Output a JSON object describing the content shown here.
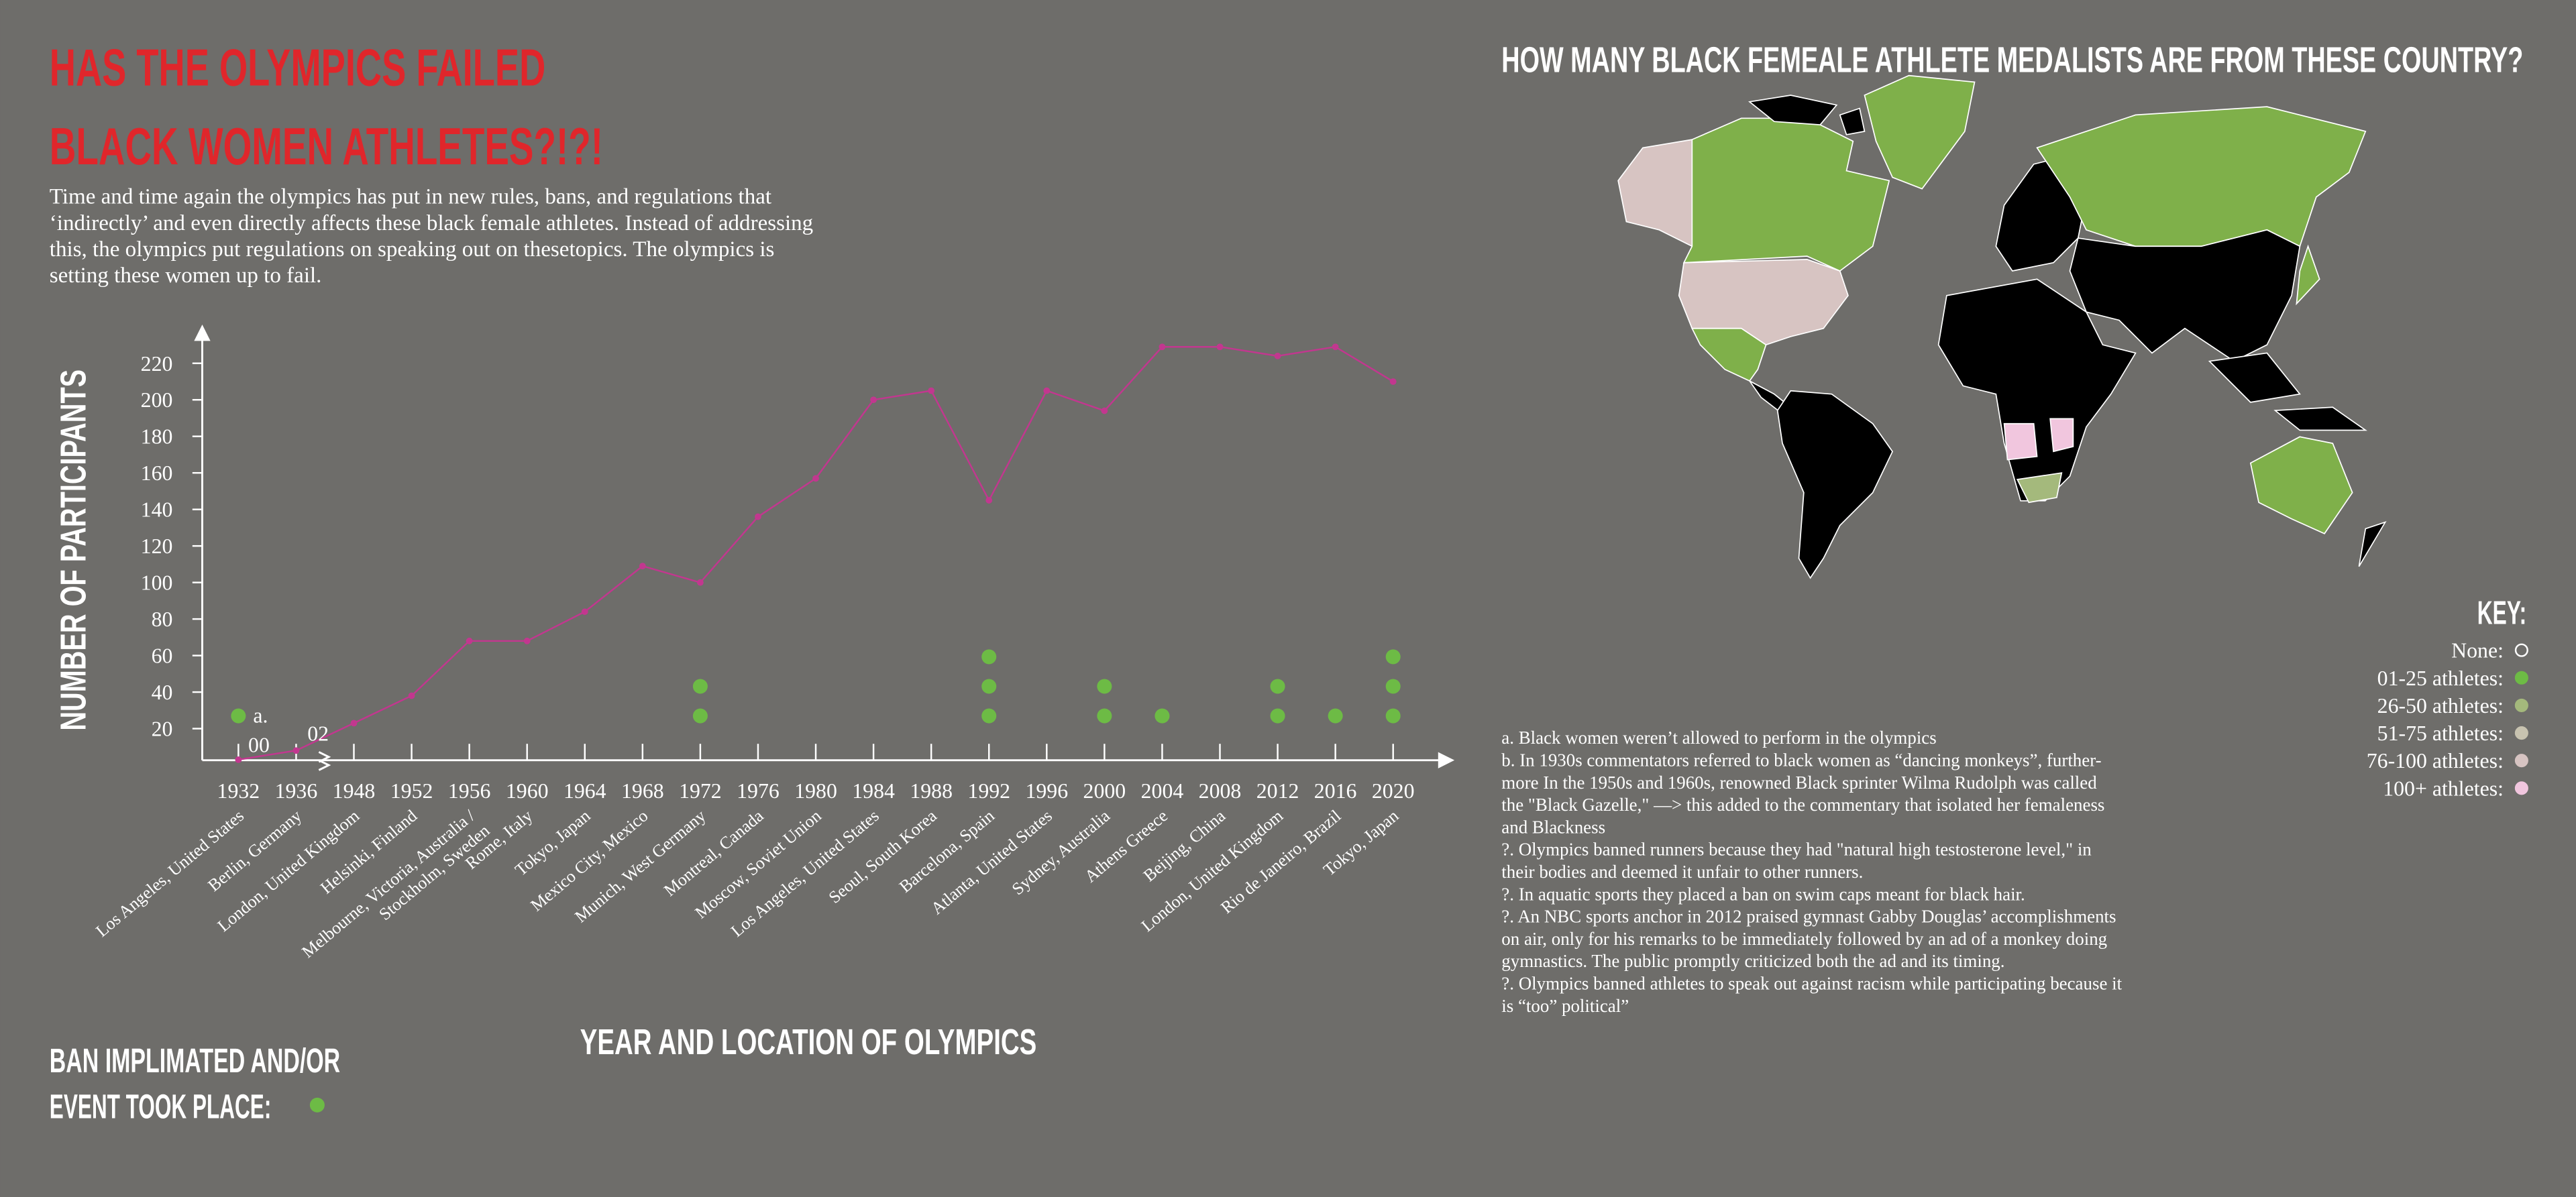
{
  "title_lines": [
    "HAS THE OLYMPICS FAILED",
    "BLACK WOMEN ATHLETES?!?!"
  ],
  "description_lines": [
    "Time and time again the olympics has put in new rules, bans, and regulations that",
    "‘indirectly’ and even directly affects these black female athletes. Instead of addressing",
    "this, the olympics put regulations on speaking out on thesetopics. The olympics is",
    "setting these women up to fail."
  ],
  "chart_data": {
    "type": "line",
    "y_label": "NUMBER  OF  PARTICIPANTS",
    "x_label": "YEAR AND LOCATION  OF  OLYMPICS",
    "categories": [
      "1932",
      "1936",
      "1948",
      "1952",
      "1956",
      "1960",
      "1964",
      "1968",
      "1972",
      "1976",
      "1980",
      "1984",
      "1988",
      "1992",
      "1996",
      "2000",
      "2004",
      "2008",
      "2012",
      "2016",
      "2020"
    ],
    "locations": [
      "Los Angeles, United States",
      "Berlin, Germany",
      "London, United Kingdom",
      "Helsinki, Finland",
      [
        "Melbourne, Victoria, Australia /",
        "Stockholm, Sweden"
      ],
      "Rome, Italy",
      "Tokyo, Japan",
      "Mexico City, Mexico",
      "Munich, West Germany",
      "Montreal, Canada",
      "Moscow, Soviet Union",
      "Los Angeles, United States",
      "Seoul, South Korea",
      "Barcelona, Spain",
      "Atlanta, United States",
      "Sydney, Australia",
      "Athens Greece",
      "Beijing, China",
      "London, United Kingdom",
      "Rio de Janeiro, Brazil",
      "Tokyo, Japan"
    ],
    "values": [
      3,
      8,
      23,
      38,
      68,
      68,
      84,
      109,
      100,
      136,
      157,
      200,
      205,
      145,
      205,
      194,
      229,
      229,
      224,
      229,
      210
    ],
    "color": "#c2378f",
    "ylim": [
      0,
      240
    ],
    "yticks": [
      20,
      40,
      60,
      80,
      100,
      120,
      140,
      160,
      180,
      200,
      220
    ],
    "ban_events": [
      1,
      0,
      0,
      0,
      0,
      0,
      0,
      0,
      2,
      0,
      0,
      0,
      0,
      3,
      0,
      2,
      1,
      0,
      2,
      1,
      3
    ],
    "ban_color": "#6dbb45",
    "annotations": [
      "a.",
      "00",
      "02"
    ],
    "ban_legend_lines": [
      "BAN IMPLIMATED AND/OR",
      "EVENT TOOK PLACE:"
    ]
  },
  "map": {
    "title": "HOW MANY BLACK FEMEALE ATHLETE MEDALISTS ARE FROM THESE COUNTRY?",
    "key_title": "KEY:",
    "key": [
      {
        "label": "None:",
        "color": "none"
      },
      {
        "label": "01-25 athletes:",
        "color": "#6dbb45"
      },
      {
        "label": "26-50 athletes:",
        "color": "#a4b97c"
      },
      {
        "label": "51-75 athletes:",
        "color": "#c8c3b0"
      },
      {
        "label": "76-100 athletes:",
        "color": "#d7c4c2"
      },
      {
        "label": "100+ athletes:",
        "color": "#f1c6de"
      }
    ]
  },
  "notes": [
    "a. Black women weren’t allowed to perform in the olympics",
    "b. In 1930s commentators referred to black women as “dancing monkeys”, further-",
    "more In the 1950s and 1960s, renowned Black sprinter Wilma Rudolph was called",
    "the \"Black Gazelle,\" —> this added to the commentary that isolated her femaleness",
    "and Blackness",
    "?. Olympics banned runners because they had \"natural high testosterone level,\" in",
    "their bodies and deemed it unfair to other runners.",
    "?. In aquatic sports they placed a ban on swim caps meant for black hair.",
    "?. An NBC sports anchor in 2012 praised gymnast Gabby Douglas’ accomplishments",
    "on air, only for his remarks to be immediately followed by an ad of a monkey doing",
    "gymnastics. The public promptly criticized both the ad and its timing.",
    "?. Olympics banned athletes to speak out against racism while participating because it",
    "is “too” political”"
  ]
}
